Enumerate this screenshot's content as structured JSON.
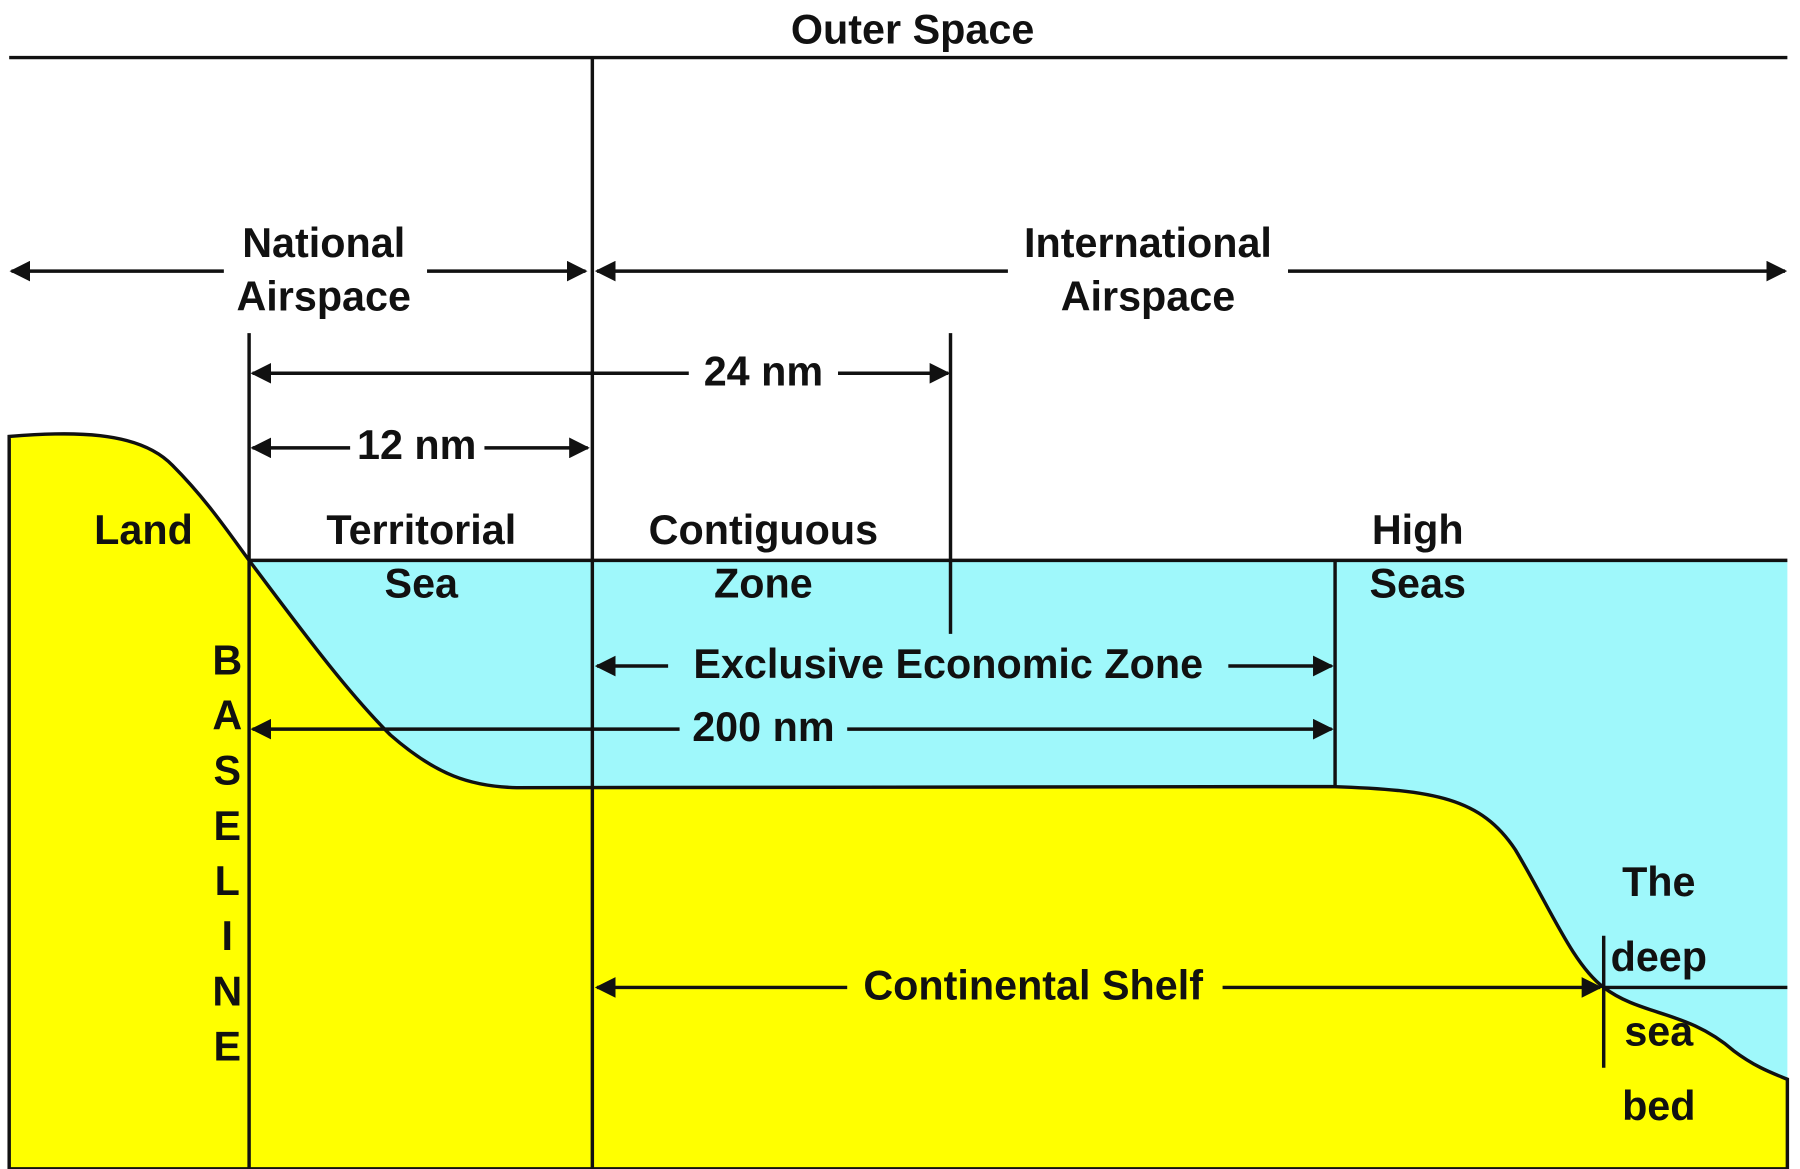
{
  "outer_space": "Outer Space",
  "national_airspace": [
    "National",
    "Airspace"
  ],
  "international_airspace": [
    "International",
    "Airspace"
  ],
  "distance_24": "24 nm",
  "distance_12": "12 nm",
  "land": "Land",
  "territorial_sea": [
    "Territorial",
    "Sea"
  ],
  "contiguous_zone": [
    "Contiguous",
    "Zone"
  ],
  "high_seas": [
    "High",
    "Seas"
  ],
  "eez": "Exclusive Economic Zone",
  "distance_200": "200 nm",
  "baseline": "BASELINE",
  "continental_shelf": "Continental Shelf",
  "deep_sea_bed": [
    "The",
    "deep",
    "sea",
    "bed"
  ]
}
